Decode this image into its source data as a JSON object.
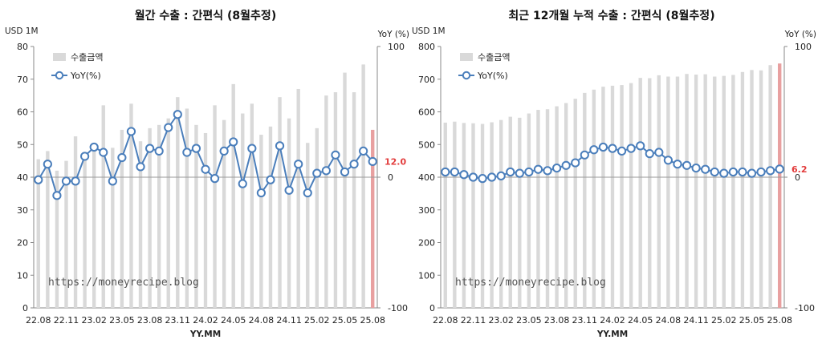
{
  "colors": {
    "bar": "#d9d9d9",
    "bar_last": "#e8a0a0",
    "line": "#4a7ebb",
    "marker_fill": "#ffffff",
    "highlight": "#e23b3b",
    "zero_line": "#999999"
  },
  "chart_data": [
    {
      "type": "bar+line",
      "title": "월간 수출 : 간편식 (8월추정)",
      "ylabel_left": "USD 1M",
      "ylabel_right": "YoY (%)",
      "xlabel": "YY.MM",
      "watermark": "https://moneyrecipe.blog",
      "legend": [
        "수출금액",
        "YoY(%)"
      ],
      "legend_position": "top-left",
      "last_label": "12.0",
      "x_tick_labels": [
        "22.08",
        "22.11",
        "23.02",
        "23.05",
        "23.08",
        "23.11",
        "24.02",
        "24.05",
        "24.08",
        "24.11",
        "25.02",
        "25.05",
        "25.08"
      ],
      "y_left_ticks": [
        "0",
        "10",
        "20",
        "30",
        "40",
        "50",
        "60",
        "70",
        "80"
      ],
      "y_right_ticks": [
        "100",
        "0",
        "-100"
      ],
      "ylim_left": [
        0,
        80
      ],
      "ylim_right": [
        -100,
        100
      ],
      "categories": [
        "22.08",
        "22.09",
        "22.10",
        "22.11",
        "22.12",
        "23.01",
        "23.02",
        "23.03",
        "23.04",
        "23.05",
        "23.06",
        "23.07",
        "23.08",
        "23.09",
        "23.10",
        "23.11",
        "23.12",
        "24.01",
        "24.02",
        "24.03",
        "24.04",
        "24.05",
        "24.06",
        "24.07",
        "24.08",
        "24.09",
        "24.10",
        "24.11",
        "24.12",
        "25.01",
        "25.02",
        "25.03",
        "25.04",
        "25.05",
        "25.06",
        "25.07",
        "25.08"
      ],
      "series": [
        {
          "name": "수출금액",
          "kind": "bar",
          "axis": "left",
          "values": [
            45.5,
            48,
            42,
            45,
            52.5,
            47,
            50,
            62,
            49,
            54.5,
            62.5,
            51,
            55,
            56,
            58,
            64.5,
            61,
            56,
            53.5,
            62,
            57.5,
            68.5,
            59.5,
            62.5,
            53,
            55.5,
            64.5,
            58,
            67,
            50.5,
            55,
            65,
            66,
            72,
            66,
            74.5,
            54.5
          ]
        },
        {
          "name": "YoY(%)",
          "kind": "line",
          "axis": "right",
          "values": [
            -2,
            10,
            -14,
            -3,
            -3,
            16,
            23,
            19,
            -3,
            15,
            35,
            8,
            22,
            20,
            38,
            48,
            19,
            22,
            6,
            -1,
            20,
            27,
            -5,
            22,
            -12,
            -2,
            24,
            -10,
            10,
            -12,
            3,
            5,
            17,
            4,
            10,
            20,
            12
          ]
        }
      ]
    },
    {
      "type": "bar+line",
      "title": "최근 12개월 누적 수출 : 간편식 (8월추정)",
      "ylabel_left": "USD 1M",
      "ylabel_right": "YoY (%)",
      "xlabel": "YY.MM",
      "watermark": "https://moneyrecipe.blog",
      "legend": [
        "수출금액",
        "YoY(%)"
      ],
      "legend_position": "top-left",
      "last_label": "6.2",
      "x_tick_labels": [
        "22.08",
        "22.11",
        "23.02",
        "23.05",
        "23.08",
        "23.11",
        "24.02",
        "24.05",
        "24.08",
        "24.11",
        "25.02",
        "25.05",
        "25.08"
      ],
      "y_left_ticks": [
        "0",
        "100",
        "200",
        "300",
        "400",
        "500",
        "600",
        "700",
        "800"
      ],
      "y_right_ticks": [
        "100",
        "0",
        "-100"
      ],
      "ylim_left": [
        0,
        800
      ],
      "ylim_right": [
        -100,
        100
      ],
      "categories": [
        "22.08",
        "22.09",
        "22.10",
        "22.11",
        "22.12",
        "23.01",
        "23.02",
        "23.03",
        "23.04",
        "23.05",
        "23.06",
        "23.07",
        "23.08",
        "23.09",
        "23.10",
        "23.11",
        "23.12",
        "24.01",
        "24.02",
        "24.03",
        "24.04",
        "24.05",
        "24.06",
        "24.07",
        "24.08",
        "24.09",
        "24.10",
        "24.11",
        "24.12",
        "25.01",
        "25.02",
        "25.03",
        "25.04",
        "25.05",
        "25.06",
        "25.07",
        "25.08"
      ],
      "series": [
        {
          "name": "수출금액",
          "kind": "bar",
          "axis": "left",
          "values": [
            567,
            570,
            566,
            565,
            563,
            568,
            575,
            585,
            582,
            595,
            606,
            608,
            617,
            627,
            640,
            658,
            668,
            677,
            680,
            682,
            688,
            704,
            703,
            712,
            708,
            708,
            716,
            714,
            715,
            708,
            710,
            713,
            722,
            728,
            727,
            743,
            748
          ]
        },
        {
          "name": "YoY(%)",
          "kind": "line",
          "axis": "right",
          "values": [
            4,
            4,
            2,
            0,
            -1,
            0,
            1,
            4,
            3,
            4,
            6,
            5,
            7,
            9,
            11,
            17,
            21,
            23,
            22,
            20,
            22,
            24,
            18,
            19,
            13,
            10,
            9,
            7,
            6,
            4,
            3,
            4,
            4,
            3,
            4,
            5,
            6.2
          ]
        }
      ]
    }
  ]
}
